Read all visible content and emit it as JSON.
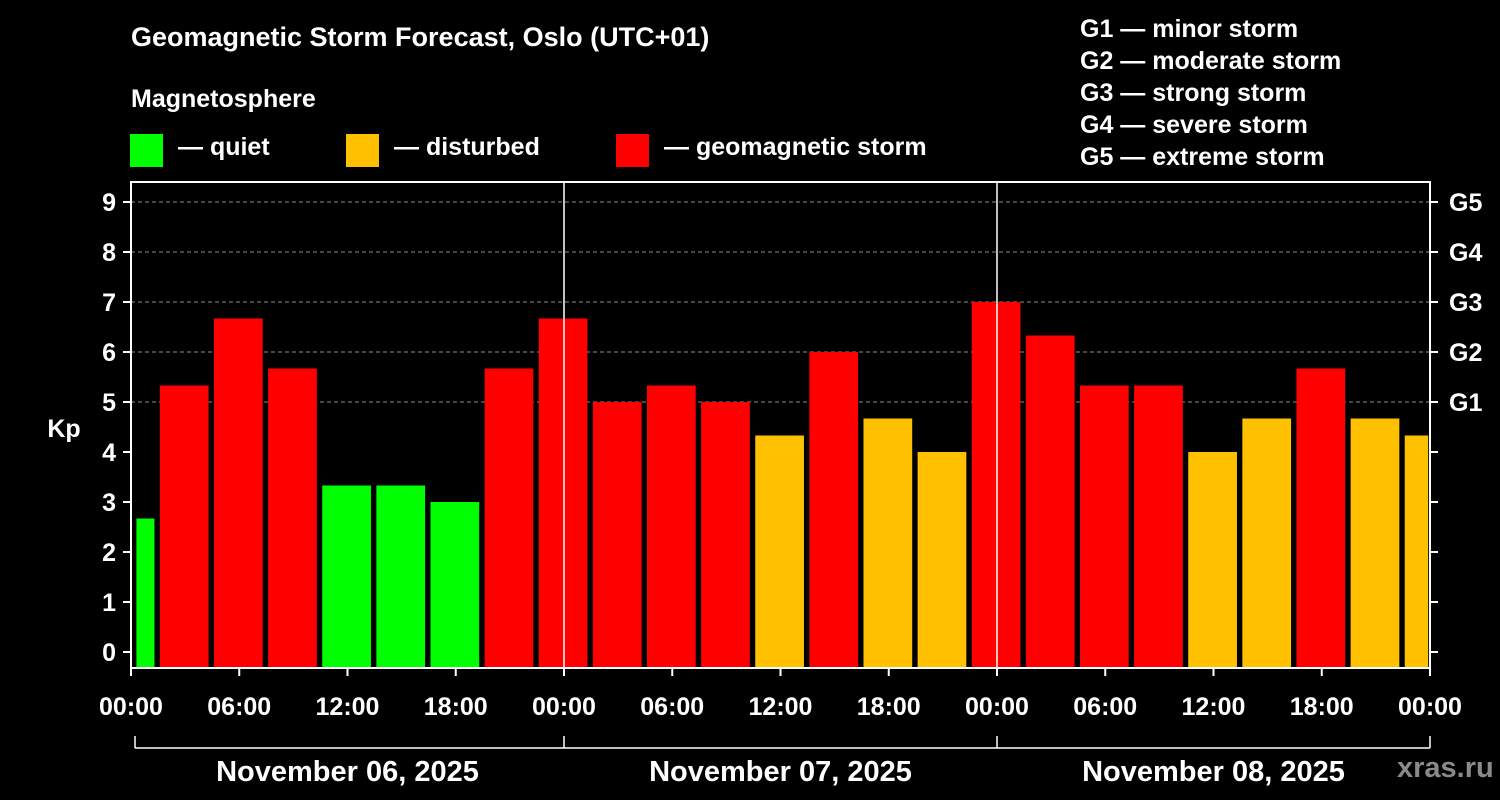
{
  "title": "Geomagnetic Storm Forecast, Oslo (UTC+01)",
  "legend": {
    "heading": "Magnetosphere",
    "items": [
      {
        "label": "— quiet",
        "color": "#00ff00"
      },
      {
        "label": "— disturbed",
        "color": "#ffc000"
      },
      {
        "label": "— geomagnetic storm",
        "color": "#ff0000"
      }
    ]
  },
  "g_levels": [
    "G1 — minor storm",
    "G2 — moderate storm",
    "G3 — strong storm",
    "G4 — severe storm",
    "G5 — extreme storm"
  ],
  "watermark": "xras.ru",
  "chart_data": {
    "type": "bar",
    "title": "Geomagnetic Storm Forecast, Oslo (UTC+01)",
    "ylabel": "Kp",
    "ylim": [
      0,
      9
    ],
    "yticks": [
      "0",
      "1",
      "2",
      "3",
      "4",
      "5",
      "6",
      "7",
      "8",
      "9"
    ],
    "right_ticks": [
      {
        "kp": 5,
        "label": "G1"
      },
      {
        "kp": 6,
        "label": "G2"
      },
      {
        "kp": 7,
        "label": "G3"
      },
      {
        "kp": 8,
        "label": "G4"
      },
      {
        "kp": 9,
        "label": "G5"
      }
    ],
    "xticks": [
      "00:00",
      "06:00",
      "12:00",
      "18:00",
      "00:00",
      "06:00",
      "12:00",
      "18:00",
      "00:00",
      "06:00",
      "12:00",
      "18:00",
      "00:00"
    ],
    "days": [
      "November 06, 2025",
      "November 07, 2025",
      "November 08, 2025"
    ],
    "bar_interval_hours": 3,
    "first_bar_start_hour": 0.3,
    "first_bar_end_hour": 1.3,
    "values": [
      2.67,
      5.33,
      6.67,
      5.67,
      3.33,
      3.33,
      3.0,
      5.67,
      6.67,
      5.0,
      5.33,
      5.0,
      4.33,
      6.0,
      4.67,
      4.0,
      7.0,
      6.33,
      5.33,
      5.33,
      4.0,
      4.67,
      5.67,
      4.67,
      4.33
    ],
    "categories": [
      "quiet",
      "storm",
      "storm",
      "storm",
      "quiet",
      "quiet",
      "quiet",
      "storm",
      "storm",
      "storm",
      "storm",
      "storm",
      "disturbed",
      "storm",
      "disturbed",
      "disturbed",
      "storm",
      "storm",
      "storm",
      "storm",
      "disturbed",
      "disturbed",
      "storm",
      "disturbed",
      "disturbed"
    ],
    "colors": {
      "quiet": "#00ff00",
      "disturbed": "#ffc000",
      "storm": "#ff0000"
    }
  }
}
